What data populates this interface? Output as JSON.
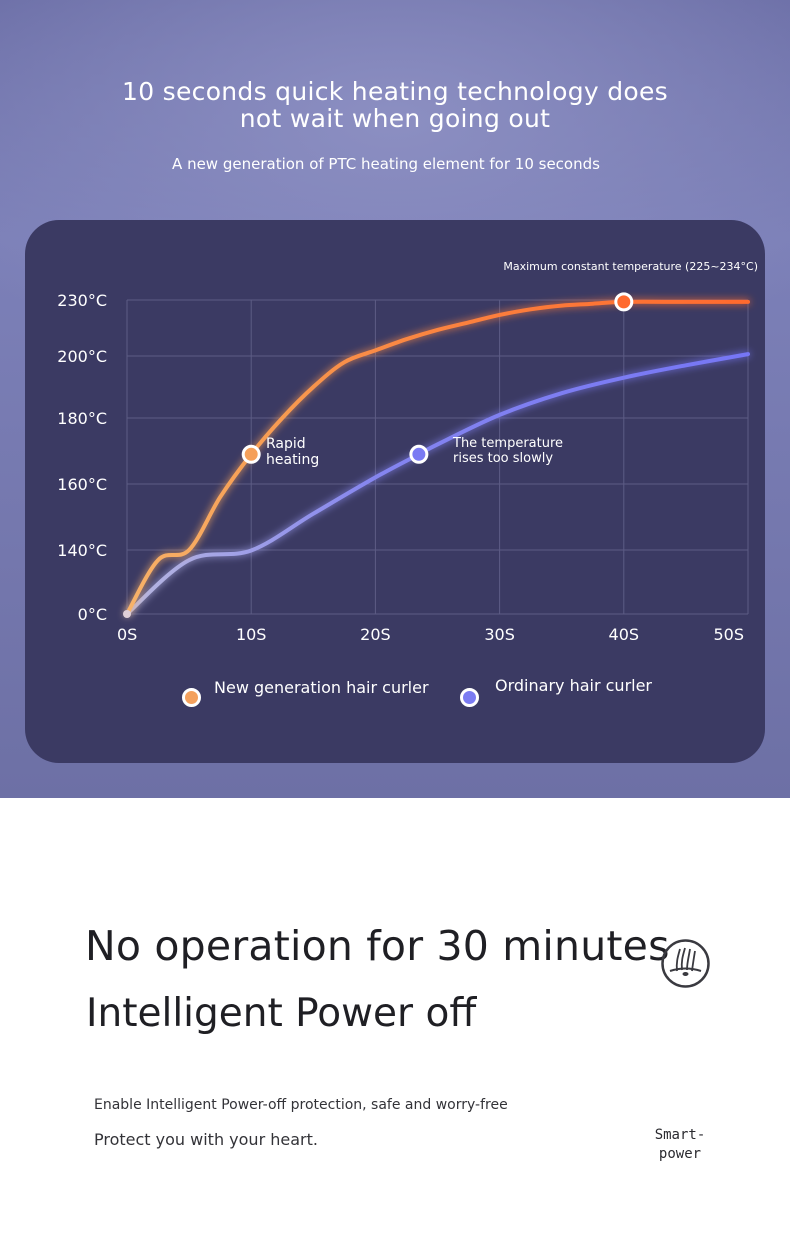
{
  "hero": {
    "title": "10 seconds quick heating technology does not wait when going out",
    "subtitle": "A new generation of PTC heating element for 10 seconds"
  },
  "chart_data": {
    "type": "line",
    "annotation_top": "Maximum constant temperature (225~234°C)",
    "x_ticks": [
      "0S",
      "10S",
      "20S",
      "30S",
      "40S",
      "50S"
    ],
    "y_ticks": [
      "0°C",
      "140°C",
      "160°C",
      "180°C",
      "200°C",
      "230°C"
    ],
    "xlim": [
      0,
      50
    ],
    "y_scale": "non-linear (tick labels evenly spaced)",
    "grid": true,
    "series": [
      {
        "name": "New generation hair curler",
        "color": "#f5a05a",
        "color_end": "#ff6a2e",
        "x": [
          0,
          2.5,
          5,
          7.5,
          10,
          12.5,
          15,
          17.5,
          20,
          22.5,
          25,
          27.5,
          30,
          32.5,
          35,
          37.5,
          40,
          45,
          50
        ],
        "y": [
          0,
          118,
          140,
          156,
          169,
          180,
          190,
          198,
          203,
          209,
          214,
          218,
          222,
          225,
          227,
          228,
          229,
          229,
          229
        ],
        "marker": {
          "x": 10,
          "y": 169,
          "label": "Rapid heating"
        },
        "marker2": {
          "x": 40,
          "y": 229
        }
      },
      {
        "name": "Ordinary hair curler",
        "color": "#7777f5",
        "x": [
          0,
          5,
          10,
          15,
          20,
          23.5,
          25,
          30,
          35,
          40,
          45,
          50
        ],
        "y": [
          0,
          118,
          139,
          151,
          162,
          169,
          172,
          181,
          188,
          193,
          197,
          201
        ],
        "marker": {
          "x": 23.5,
          "y": 169,
          "label": "The temperature rises too slowly"
        }
      }
    ],
    "legend": "bottom"
  },
  "power": {
    "title_line1": "No operation for 30 minutes",
    "title_line2": "Intelligent Power off",
    "description": "Enable Intelligent Power-off protection, safe and worry-free",
    "tagline": "Protect you with your heart.",
    "badge_icon": "hair-follicle-icon",
    "badge_label": "Smart-power"
  }
}
